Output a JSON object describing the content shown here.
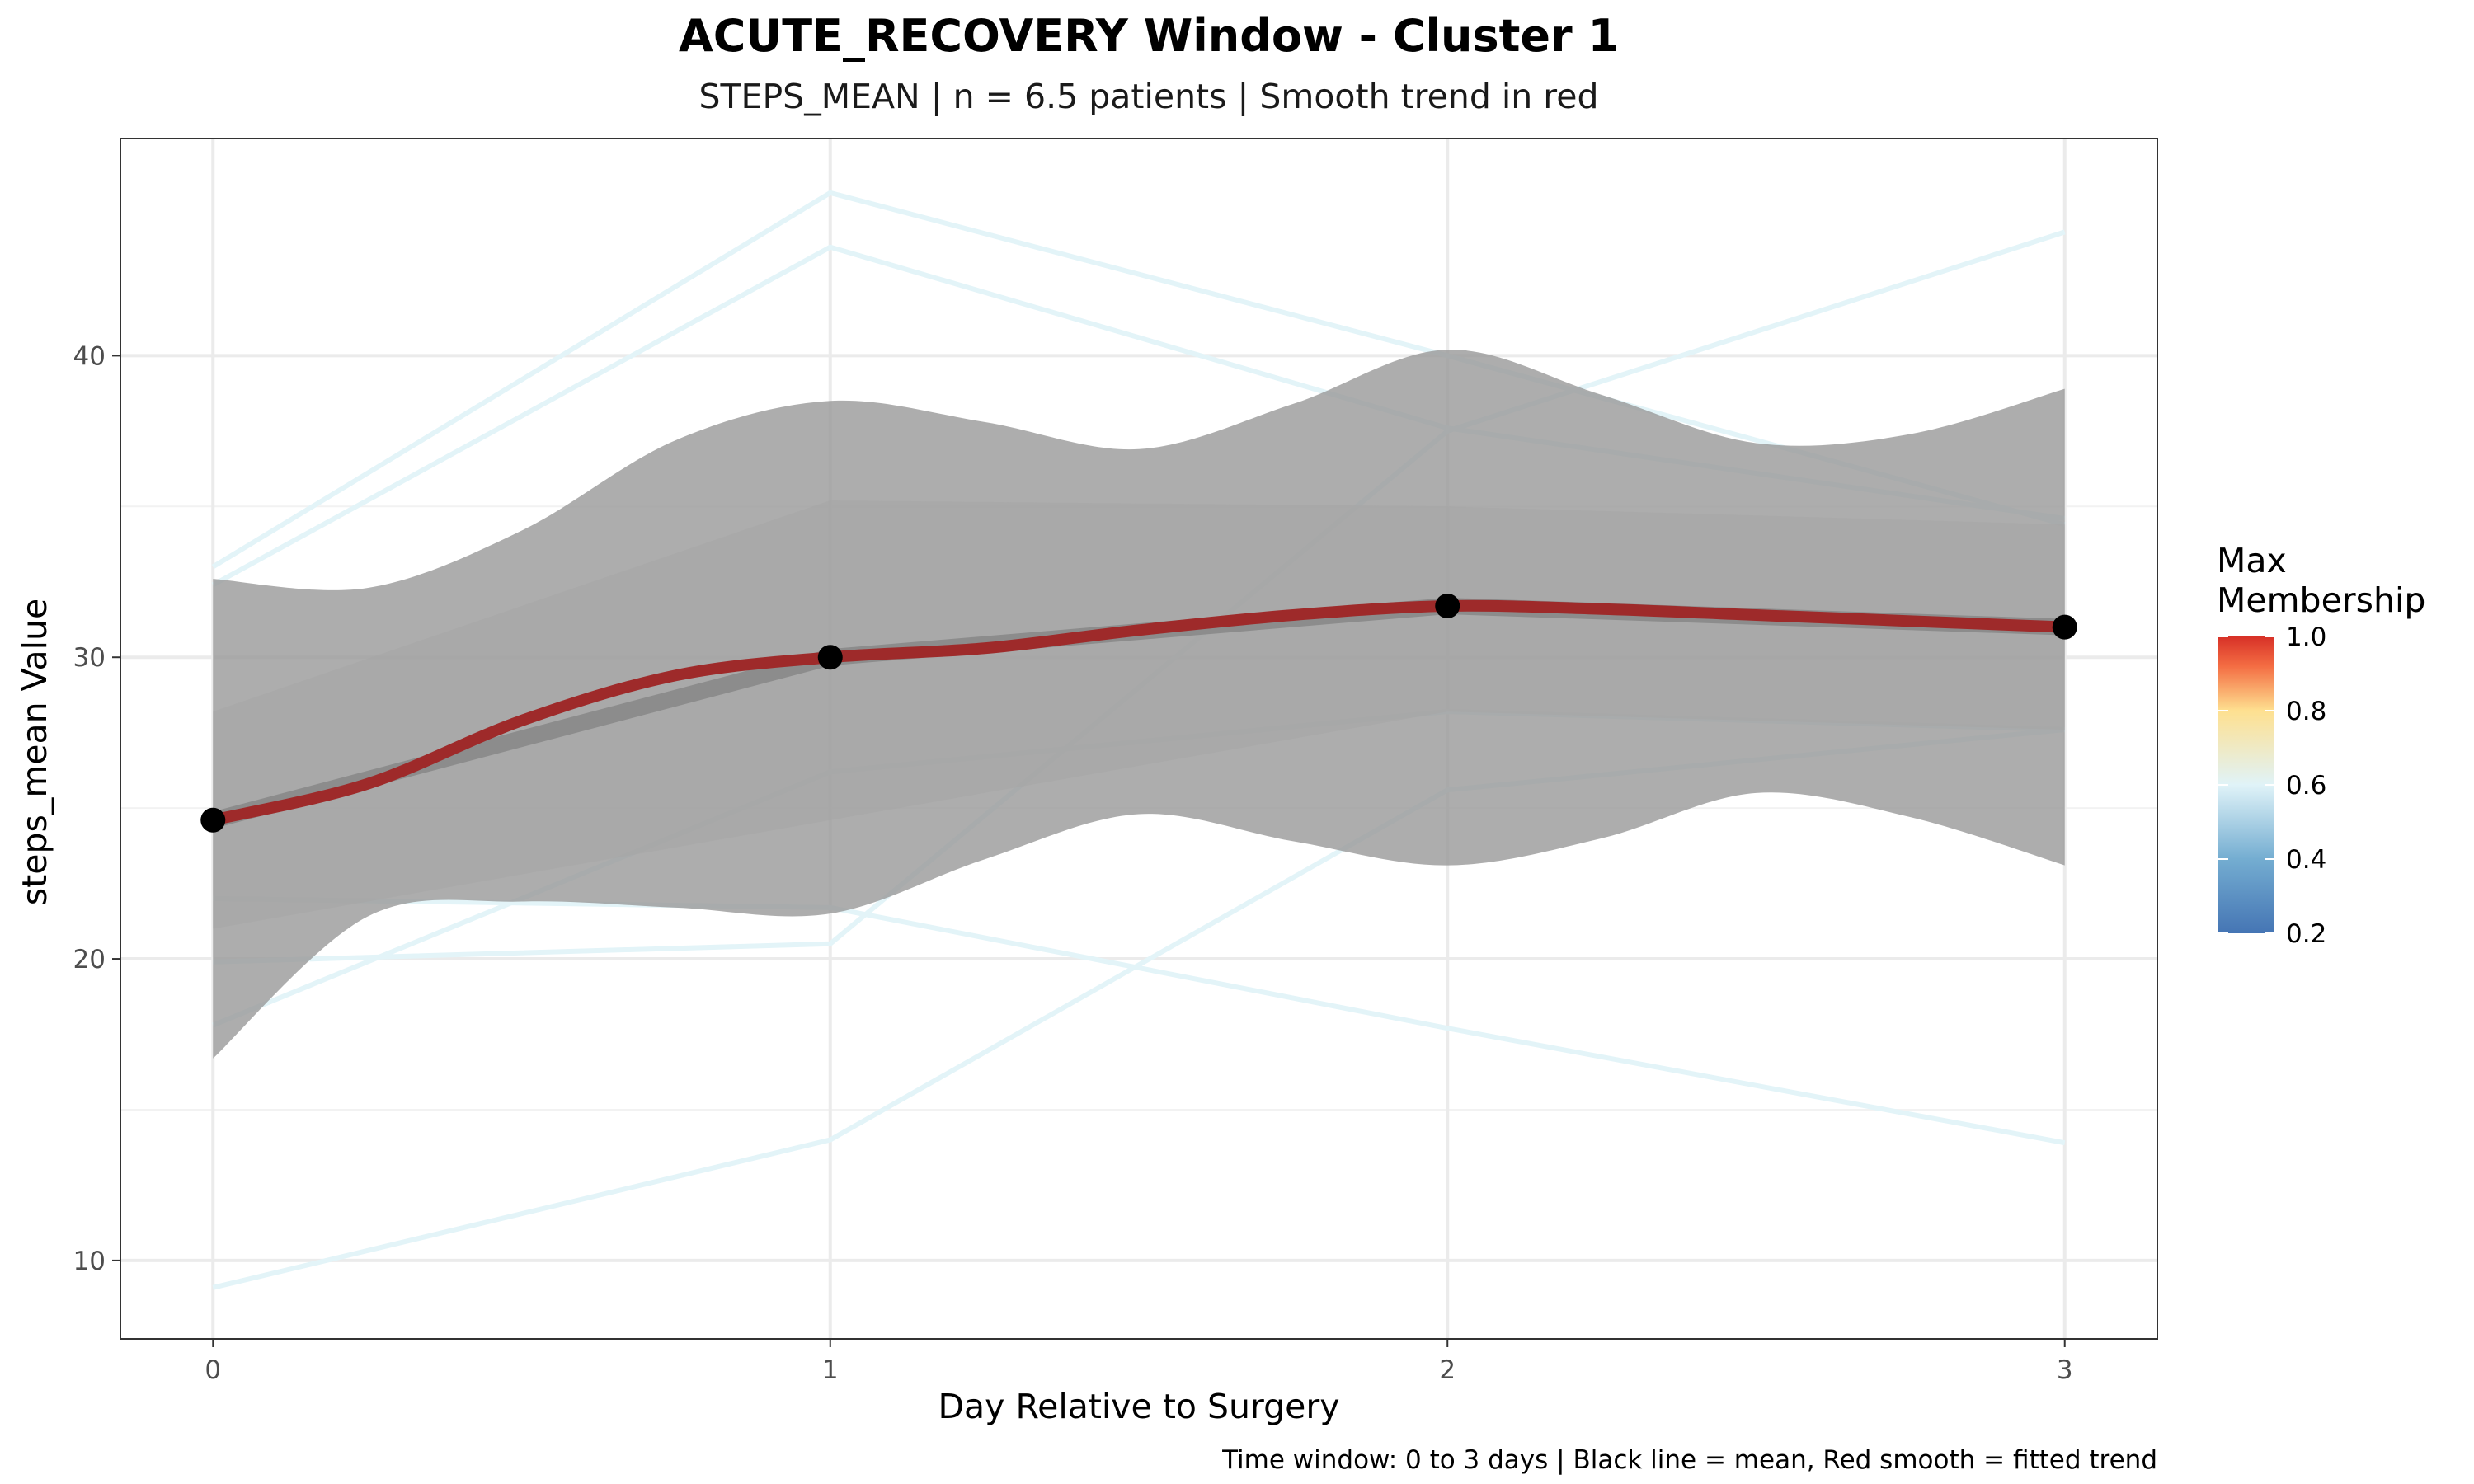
{
  "chart_data": {
    "type": "line",
    "title": "ACUTE_RECOVERY Window - Cluster 1",
    "subtitle": "STEPS_MEAN | n = 6.5 patients | Smooth trend in red",
    "xlabel": "Day Relative to Surgery",
    "ylabel": "steps_mean Value",
    "caption": "Time window: 0 to 3 days | Black line = mean, Red smooth = fitted trend",
    "x_ticks": [
      0,
      1,
      2,
      3
    ],
    "y_ticks": [
      10,
      20,
      30,
      40
    ],
    "xlim": [
      -0.15,
      3.15
    ],
    "ylim": [
      7.4,
      47.2
    ],
    "grid": true,
    "legend": {
      "title_lines": [
        "Max",
        "Membership"
      ],
      "placement": "right",
      "ticks": [
        0.2,
        0.4,
        0.6,
        0.8,
        1.0
      ],
      "tick_labels": [
        "0.2",
        "0.4",
        "0.6",
        "0.8",
        "1.0"
      ],
      "range": [
        0.2,
        1.0
      ]
    },
    "x": [
      0,
      1,
      2,
      3
    ],
    "patient_lines": [
      {
        "values": [
          33.0,
          45.4,
          40.0,
          34.4
        ],
        "membership": 0.5
      },
      {
        "values": [
          32.4,
          43.6,
          37.6,
          34.6
        ],
        "membership": 0.5
      },
      {
        "values": [
          19.9,
          20.5,
          37.5,
          44.1
        ],
        "membership": 0.5
      },
      {
        "values": [
          9.1,
          14.0,
          25.6,
          27.6
        ],
        "membership": 0.5
      },
      {
        "values": [
          22.0,
          21.7,
          17.7,
          13.9
        ],
        "membership": 0.5
      },
      {
        "values": [
          17.8,
          26.2,
          28.2,
          27.6
        ],
        "membership": 0.5
      }
    ],
    "mean": {
      "values": [
        24.6,
        30.0,
        31.7,
        31.0
      ],
      "ci_lower": [
        21.0,
        24.6,
        28.2,
        27.6
      ],
      "ci_upper": [
        28.2,
        35.2,
        35.0,
        34.4
      ]
    },
    "smooth": {
      "x": [
        0,
        0.25,
        0.5,
        0.75,
        1,
        1.25,
        1.5,
        1.75,
        2,
        2.25,
        2.5,
        2.75,
        3
      ],
      "values": [
        24.6,
        25.8,
        27.9,
        29.4,
        30.0,
        30.3,
        30.9,
        31.4,
        31.7,
        31.6,
        31.4,
        31.2,
        31.0
      ],
      "lower": [
        16.7,
        21.4,
        21.9,
        21.7,
        21.5,
        23.3,
        24.8,
        23.9,
        23.1,
        24.0,
        25.5,
        24.7,
        23.1
      ],
      "upper": [
        32.6,
        32.3,
        34.2,
        37.2,
        38.5,
        37.8,
        36.9,
        38.4,
        40.2,
        38.7,
        37.1,
        37.4,
        38.9
      ]
    },
    "colors": {
      "patient_line": "#e3f4f8",
      "band": "#999999",
      "mean_band": "#a6a6a6",
      "mean_line": "#8c8c8c",
      "smooth_line": "#9e2a2a",
      "point": "#000000",
      "gradient": [
        "#4575b4",
        "#74add1",
        "#e0f3f8",
        "#fee090",
        "#f46d43",
        "#d73027"
      ]
    }
  }
}
